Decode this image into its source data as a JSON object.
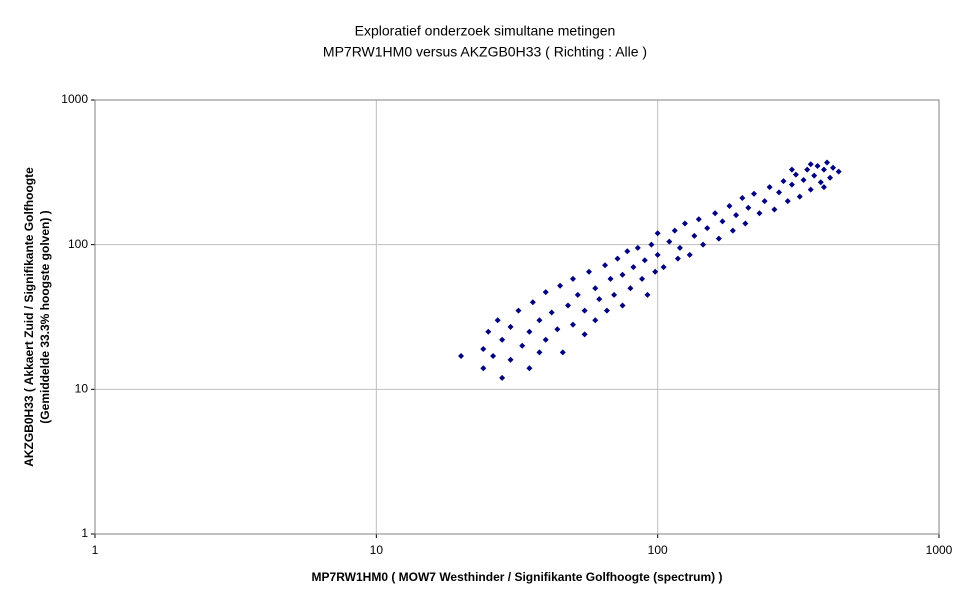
{
  "chart_data": {
    "type": "scatter",
    "title": "Exploratief onderzoek simultane metingen",
    "subtitle": "MP7RW1HM0 versus AKZGB0H33 ( Richting : Alle )",
    "xlabel": "MP7RW1HM0 ( MOW7 Westhinder / Signifikante Golfhoogte (spectrum) )",
    "ylabel": [
      "AKZGB0H33 ( Akkaert Zuid / Signifikante Golfhoogte",
      "(Gemiddelde 33.3%  hoogste golven) )"
    ],
    "log_x": true,
    "log_y": true,
    "grid": true,
    "color": "#000080",
    "xlim": [
      1,
      1000
    ],
    "ylim": [
      1,
      1000
    ],
    "xticks": [
      1,
      10,
      100,
      1000
    ],
    "yticks": [
      1,
      10,
      100,
      1000
    ],
    "x": [
      20,
      24,
      24,
      25,
      26,
      27,
      28,
      28,
      30,
      30,
      32,
      33,
      35,
      35,
      36,
      38,
      38,
      40,
      40,
      42,
      44,
      45,
      46,
      48,
      50,
      50,
      52,
      55,
      55,
      57,
      60,
      60,
      62,
      65,
      66,
      68,
      70,
      72,
      75,
      75,
      78,
      80,
      82,
      85,
      88,
      90,
      92,
      95,
      98,
      100,
      100,
      105,
      110,
      115,
      118,
      120,
      125,
      130,
      135,
      140,
      145,
      150,
      160,
      165,
      170,
      180,
      185,
      190,
      200,
      205,
      210,
      220,
      230,
      240,
      250,
      260,
      270,
      280,
      290,
      300,
      310,
      320,
      330,
      340,
      350,
      360,
      370,
      380,
      390,
      400,
      410,
      420,
      440,
      390,
      350,
      300
    ],
    "values": [
      17,
      14,
      19,
      25,
      17,
      30,
      12,
      22,
      16,
      27,
      35,
      20,
      14,
      25,
      40,
      18,
      30,
      22,
      47,
      34,
      26,
      52,
      18,
      38,
      28,
      58,
      45,
      24,
      35,
      65,
      30,
      50,
      42,
      72,
      35,
      58,
      45,
      80,
      38,
      62,
      90,
      50,
      70,
      95,
      58,
      78,
      45,
      100,
      65,
      85,
      120,
      70,
      105,
      125,
      80,
      95,
      140,
      85,
      115,
      150,
      100,
      130,
      165,
      110,
      145,
      185,
      125,
      160,
      210,
      140,
      180,
      225,
      165,
      200,
      250,
      175,
      230,
      275,
      200,
      260,
      305,
      215,
      280,
      330,
      240,
      300,
      350,
      270,
      330,
      370,
      290,
      340,
      320,
      250,
      360,
      330
    ]
  }
}
